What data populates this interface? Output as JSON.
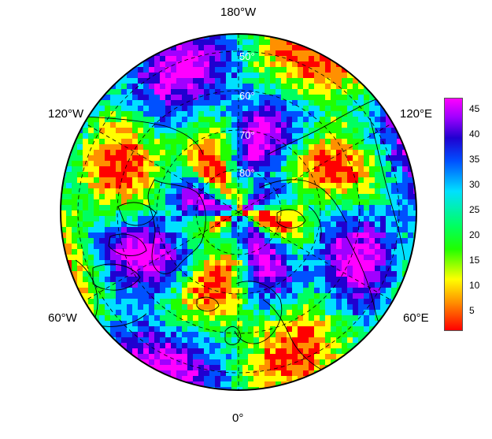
{
  "map": {
    "projection": "north-polar-stereographic",
    "longitude_labels": {
      "top": "180°W",
      "bottom": "0°",
      "upper_left": "120°W",
      "upper_right": "120°E",
      "lower_left": "60°W",
      "lower_right": "60°E"
    },
    "latitude_labels": [
      "50°",
      "60°",
      "70°",
      "80°"
    ]
  },
  "colorbar": {
    "ticks": [
      "45",
      "40",
      "35",
      "30",
      "25",
      "20",
      "15",
      "10",
      "5"
    ],
    "tick_values": [
      45,
      40,
      35,
      30,
      25,
      20,
      15,
      10,
      5
    ],
    "range": [
      1,
      48
    ],
    "colors": [
      "#ff00ff",
      "#a000ff",
      "#2000d0",
      "#0050ff",
      "#00e0ff",
      "#00ff60",
      "#20ff00",
      "#ffff00",
      "#ff9000",
      "#ff0000"
    ]
  }
}
